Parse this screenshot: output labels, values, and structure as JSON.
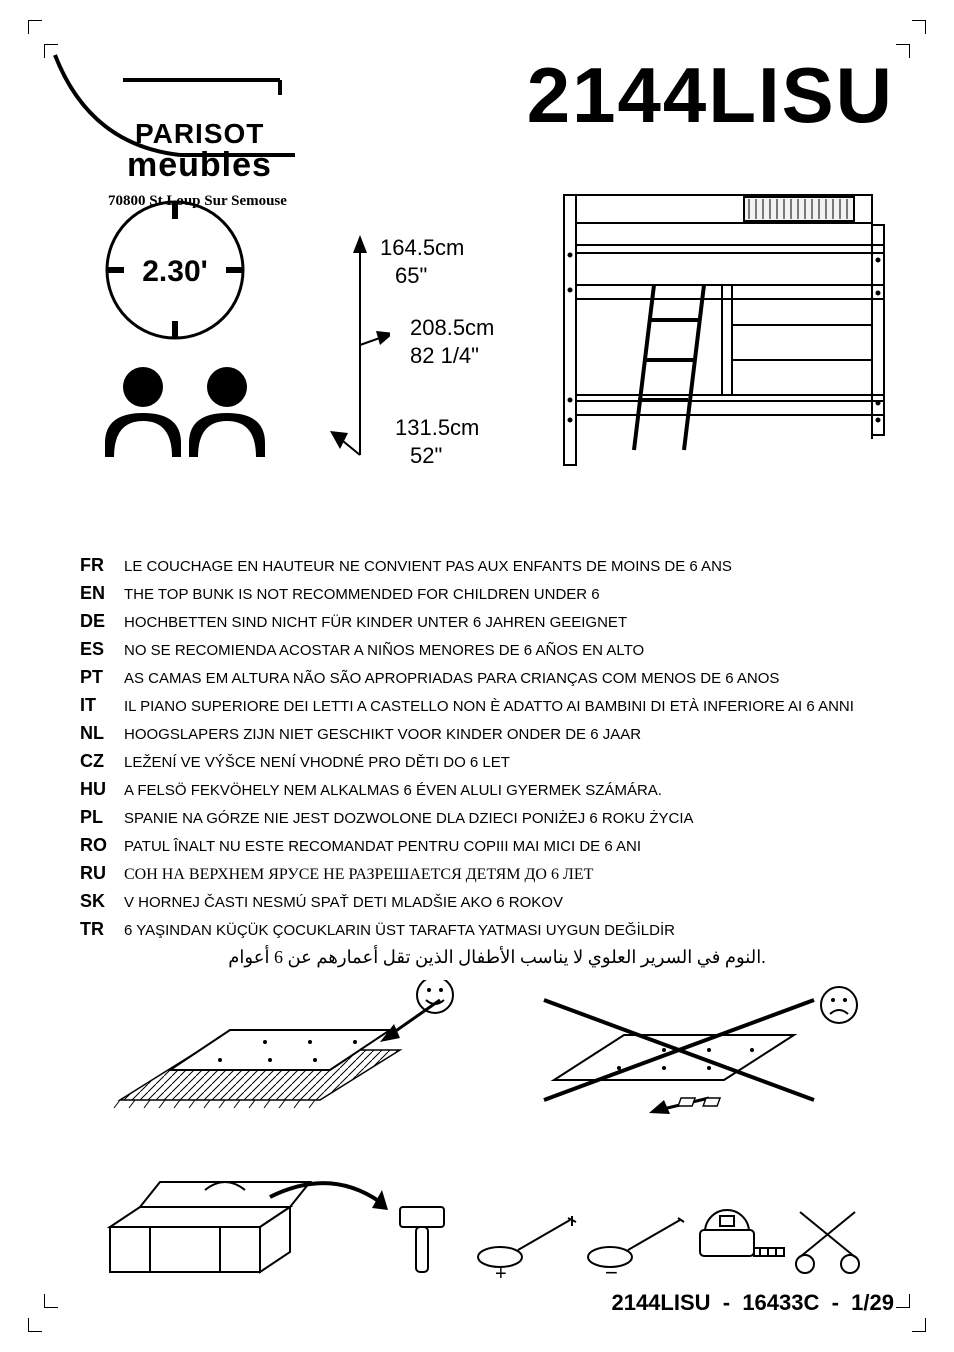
{
  "title": "2144LISU",
  "brand": {
    "line1": "PARISOT",
    "line2": "meubles",
    "address": "70800 St Loup Sur Semouse"
  },
  "assembly_time": "2.30'",
  "persons_required": 2,
  "dimensions": {
    "height_cm": "164.5cm",
    "height_in": "65\"",
    "width_cm": "208.5cm",
    "width_in": "82 1/4\"",
    "depth_cm": "131.5cm",
    "depth_in": "52\""
  },
  "warnings": [
    {
      "lang": "FR",
      "text": "LE COUCHAGE EN HAUTEUR NE CONVIENT PAS AUX ENFANTS DE MOINS DE 6 ANS"
    },
    {
      "lang": "EN",
      "text": "THE TOP BUNK IS NOT RECOMMENDED FOR CHILDREN UNDER 6"
    },
    {
      "lang": "DE",
      "text": "HOCHBETTEN SIND NICHT FÜR KINDER UNTER 6 JAHREN GEEIGNET"
    },
    {
      "lang": "ES",
      "text": "NO SE RECOMIENDA ACOSTAR A NIÑOS MENORES DE 6 AÑOS EN ALTO"
    },
    {
      "lang": "PT",
      "text": "AS CAMAS EM ALTURA NÃO SÃO APROPRIADAS PARA CRIANÇAS COM MENOS DE 6 ANOS"
    },
    {
      "lang": "IT",
      "text": "IL PIANO SUPERIORE DEI LETTI A CASTELLO NON È ADATTO AI BAMBINI DI ETÀ INFERIORE AI 6 ANNI"
    },
    {
      "lang": "NL",
      "text": "HOOGSLAPERS ZIJN NIET GESCHIKT VOOR KINDER ONDER DE 6 JAAR"
    },
    {
      "lang": "CZ",
      "text": "LEŽENÍ VE VÝŠCE NENÍ VHODNÉ PRO DĚTI DO 6 LET"
    },
    {
      "lang": "HU",
      "text": "A FELSÖ FEKVÖHELY NEM ALKALMAS 6 ÉVEN ALULI GYERMEK SZÁMÁRA."
    },
    {
      "lang": "PL",
      "text": "SPANIE NA GÓRZE NIE JEST DOZWOLONE DLA DZIECI PONIŻEJ 6 ROKU ŻYCIA"
    },
    {
      "lang": "RO",
      "text": "PATUL ÎNALT NU ESTE RECOMANDAT PENTRU COPIII MAI MICI DE 6 ANI"
    },
    {
      "lang": "RU",
      "text": "СОН НА ВЕРХНЕМ ЯРУСЕ НЕ РАЗРЕШАЕТСЯ ДЕТЯМ ДО 6 ЛЕТ",
      "class": "ru"
    },
    {
      "lang": "SK",
      "text": "V HORNEJ ČASTI NESMÚ SPAŤ DETI MLADŠIE AKO 6 ROKOV"
    },
    {
      "lang": "TR",
      "text": "6 YAŞINDAN KÜÇÜK ÇOCUKLARIN ÜST TARAFTA YATMASI UYGUN DEĞİLDİR"
    }
  ],
  "warning_ar": "النوم في السرير العلوي لا يناسب الأطفال الذين تقل أعمارهم عن 6 أعوام.",
  "footer": {
    "model": "2144LISU",
    "code": "16433C",
    "page": "1/29"
  },
  "style": {
    "text_color": "#000000",
    "bg_color": "#ffffff",
    "stroke_width_thin": 1.5,
    "stroke_width_thick": 3
  }
}
